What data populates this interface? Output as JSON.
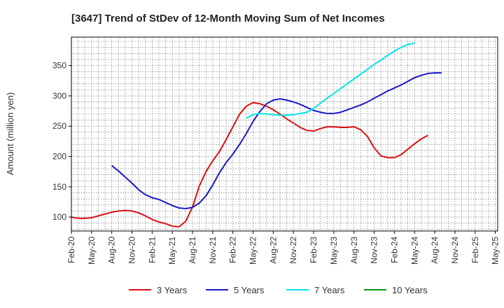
{
  "chart_data": {
    "type": "line",
    "title": "[3647]  Trend of StDev of 12-Month Moving Sum of Net Incomes",
    "xlabel": "",
    "ylabel": "Amount (million yen)",
    "ylim": [
      77,
      397
    ],
    "yticks": [
      100,
      150,
      200,
      250,
      300,
      350
    ],
    "x_tick_labels": [
      "Feb-20",
      "May-20",
      "Aug-20",
      "Nov-20",
      "Feb-21",
      "May-21",
      "Aug-21",
      "Nov-21",
      "Feb-22",
      "May-22",
      "Aug-22",
      "Nov-22",
      "Feb-23",
      "May-23",
      "Aug-23",
      "Nov-23",
      "Feb-24",
      "May-24",
      "Aug-24",
      "Nov-24",
      "Feb-25",
      "May-25"
    ],
    "grid": true,
    "legend_position": "bottom",
    "series": [
      {
        "name": "3 Years",
        "color": "#dd1111",
        "start_index": 0,
        "values": [
          100,
          98,
          98,
          99,
          102,
          105,
          108,
          110,
          111,
          110,
          107,
          102,
          96,
          92,
          89,
          85,
          84,
          93,
          117,
          151,
          175,
          193,
          208,
          228,
          249,
          270,
          283,
          289,
          287,
          283,
          277,
          270,
          262,
          255,
          248,
          243,
          242,
          246,
          249,
          249,
          248,
          248,
          249,
          244,
          233,
          214,
          201,
          198,
          198,
          203,
          212,
          221,
          229,
          235
        ]
      },
      {
        "name": "5 Years",
        "color": "#1a1acc",
        "start_index": 6,
        "values": [
          185,
          176,
          166,
          156,
          145,
          137,
          132,
          129,
          124,
          119,
          115,
          114,
          116,
          123,
          135,
          153,
          173,
          190,
          204,
          220,
          238,
          258,
          274,
          287,
          293,
          295,
          293,
          290,
          286,
          281,
          276,
          273,
          271,
          271,
          273,
          277,
          281,
          285,
          290,
          296,
          302,
          308,
          313,
          318,
          324,
          330,
          334,
          337,
          338,
          338
        ]
      },
      {
        "name": "7 Years",
        "color": "#00e5ee",
        "start_index": 26,
        "values": [
          263,
          269,
          271,
          270,
          269,
          268,
          268,
          269,
          271,
          273,
          279,
          288,
          296,
          304,
          312,
          320,
          328,
          336,
          344,
          352,
          359,
          367,
          374,
          380,
          385,
          387
        ]
      },
      {
        "name": "10 Years",
        "color": "#119911",
        "start_index": 0,
        "values": []
      }
    ]
  }
}
